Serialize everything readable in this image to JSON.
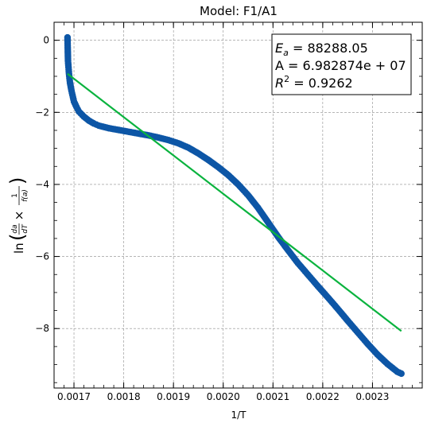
{
  "chart_data": {
    "type": "scatter",
    "title": "Model: F1/A1",
    "xlabel": "1/T",
    "ylabel_parts": {
      "prefix": "ln",
      "frac1_num": "da",
      "frac1_den": "dT",
      "times": "×",
      "frac2_num": "1",
      "frac2_den": "f(a)"
    },
    "xlim": [
      0.00166,
      0.0024
    ],
    "ylim": [
      -9.65,
      0.5
    ],
    "x_ticks": [
      0.0017,
      0.0018,
      0.0019,
      0.002,
      0.0021,
      0.0022,
      0.0023
    ],
    "x_tick_labels": [
      "0.0017",
      "0.0018",
      "0.0019",
      "0.0020",
      "0.0021",
      "0.0022",
      "0.0023"
    ],
    "y_ticks": [
      0,
      -2,
      -4,
      -6,
      -8
    ],
    "y_tick_labels": [
      "0",
      "−2",
      "−4",
      "−6",
      "−8"
    ],
    "grid": true,
    "series": [
      {
        "kind": "scatter",
        "color": "#0d56a6",
        "x": [
          0.001687,
          0.001688,
          0.00169,
          0.001692,
          0.001695,
          0.001698,
          0.0017,
          0.001705,
          0.00171,
          0.00172,
          0.00173,
          0.00174,
          0.00175,
          0.00177,
          0.00179,
          0.00181,
          0.00183,
          0.00185,
          0.00187,
          0.00189,
          0.00191,
          0.00193,
          0.00195,
          0.00197,
          0.00199,
          0.00201,
          0.00203,
          0.00205,
          0.00207,
          0.00209,
          0.00211,
          0.00213,
          0.00215,
          0.00217,
          0.00219,
          0.00221,
          0.00223,
          0.00225,
          0.00227,
          0.00229,
          0.00231,
          0.00233,
          0.00235,
          0.002358
        ],
        "y": [
          0.08,
          -0.57,
          -0.93,
          -1.18,
          -1.4,
          -1.58,
          -1.7,
          -1.85,
          -1.98,
          -2.12,
          -2.23,
          -2.31,
          -2.37,
          -2.44,
          -2.49,
          -2.54,
          -2.59,
          -2.64,
          -2.7,
          -2.77,
          -2.86,
          -2.98,
          -3.14,
          -3.32,
          -3.52,
          -3.74,
          -4.0,
          -4.3,
          -4.65,
          -5.05,
          -5.45,
          -5.82,
          -6.18,
          -6.5,
          -6.82,
          -7.13,
          -7.45,
          -7.78,
          -8.1,
          -8.42,
          -8.72,
          -8.98,
          -9.2,
          -9.25
        ]
      },
      {
        "kind": "line",
        "color": "#0ab33e",
        "x": [
          0.001687,
          0.002358
        ],
        "y": [
          -0.93,
          -8.07
        ]
      }
    ],
    "annotation": {
      "line1_symbol": "E",
      "line1_sub": "a",
      "line1_rest": " = 88288.05",
      "line2": "A = 6.982874e + 07",
      "line3_symbol": "R",
      "line3_sup": "2",
      "line3_rest": " = 0.9262"
    }
  }
}
